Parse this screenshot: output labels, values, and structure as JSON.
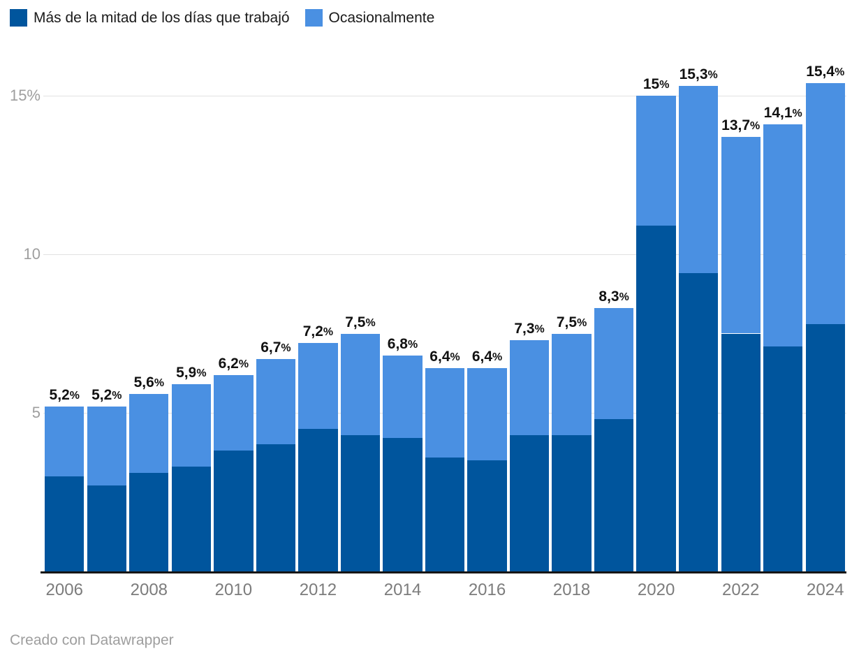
{
  "legend": {
    "items": [
      {
        "label": "Más de la mitad de los días que trabajó"
      },
      {
        "label": "Ocasionalmente"
      }
    ]
  },
  "footer": {
    "text": "Creado con Datawrapper"
  },
  "style": {
    "series_dark": "#00559d",
    "series_light": "#4a90e2",
    "gridline": "#e2e2e2",
    "axis_line": "#161616",
    "y_tick_text": "#9e9e9e",
    "x_tick_text": "#7c7c7c",
    "value_label_text": "#121212",
    "footer_text": "#9e9e9e"
  },
  "chart_data": {
    "type": "bar",
    "stacked": true,
    "title": "",
    "xlabel": "",
    "ylabel": "",
    "grid": true,
    "legend_position": "top-left",
    "ylim": [
      0,
      16
    ],
    "x": [
      2006,
      2007,
      2008,
      2009,
      2010,
      2011,
      2012,
      2013,
      2014,
      2015,
      2016,
      2017,
      2018,
      2019,
      2020,
      2021,
      2022,
      2023,
      2024
    ],
    "series": [
      {
        "name": "Más de la mitad de los días que trabajó",
        "color": "#00559d",
        "values": [
          3.0,
          2.7,
          3.1,
          3.3,
          3.8,
          4.0,
          4.5,
          4.3,
          4.2,
          3.6,
          3.5,
          4.3,
          4.3,
          4.8,
          10.9,
          9.4,
          7.5,
          7.1,
          7.8
        ]
      },
      {
        "name": "Ocasionalmente",
        "color": "#4a90e2",
        "values": [
          2.2,
          2.5,
          2.5,
          2.6,
          2.4,
          2.7,
          2.7,
          3.2,
          2.6,
          2.8,
          2.9,
          3.0,
          3.2,
          3.5,
          4.1,
          5.9,
          6.2,
          7.0,
          7.6
        ]
      }
    ],
    "totals": [
      5.2,
      5.2,
      5.6,
      5.9,
      6.2,
      6.7,
      7.2,
      7.5,
      6.8,
      6.4,
      6.4,
      7.3,
      7.5,
      8.3,
      15,
      15.3,
      13.7,
      14.1,
      15.4
    ],
    "total_labels": [
      "5,2%",
      "5,2%",
      "5,6%",
      "5,9%",
      "6,2%",
      "6,7%",
      "7,2%",
      "7,5%",
      "6,8%",
      "6,4%",
      "6,4%",
      "7,3%",
      "7,5%",
      "8,3%",
      "15%",
      "15,3%",
      "13,7%",
      "14,1%",
      "15,4%"
    ],
    "y_ticks": [
      5,
      10,
      15
    ],
    "y_tick_labels": [
      "5",
      "10",
      "15%"
    ],
    "x_tick_years": [
      2006,
      2008,
      2010,
      2012,
      2014,
      2016,
      2018,
      2020,
      2022,
      2024
    ]
  }
}
